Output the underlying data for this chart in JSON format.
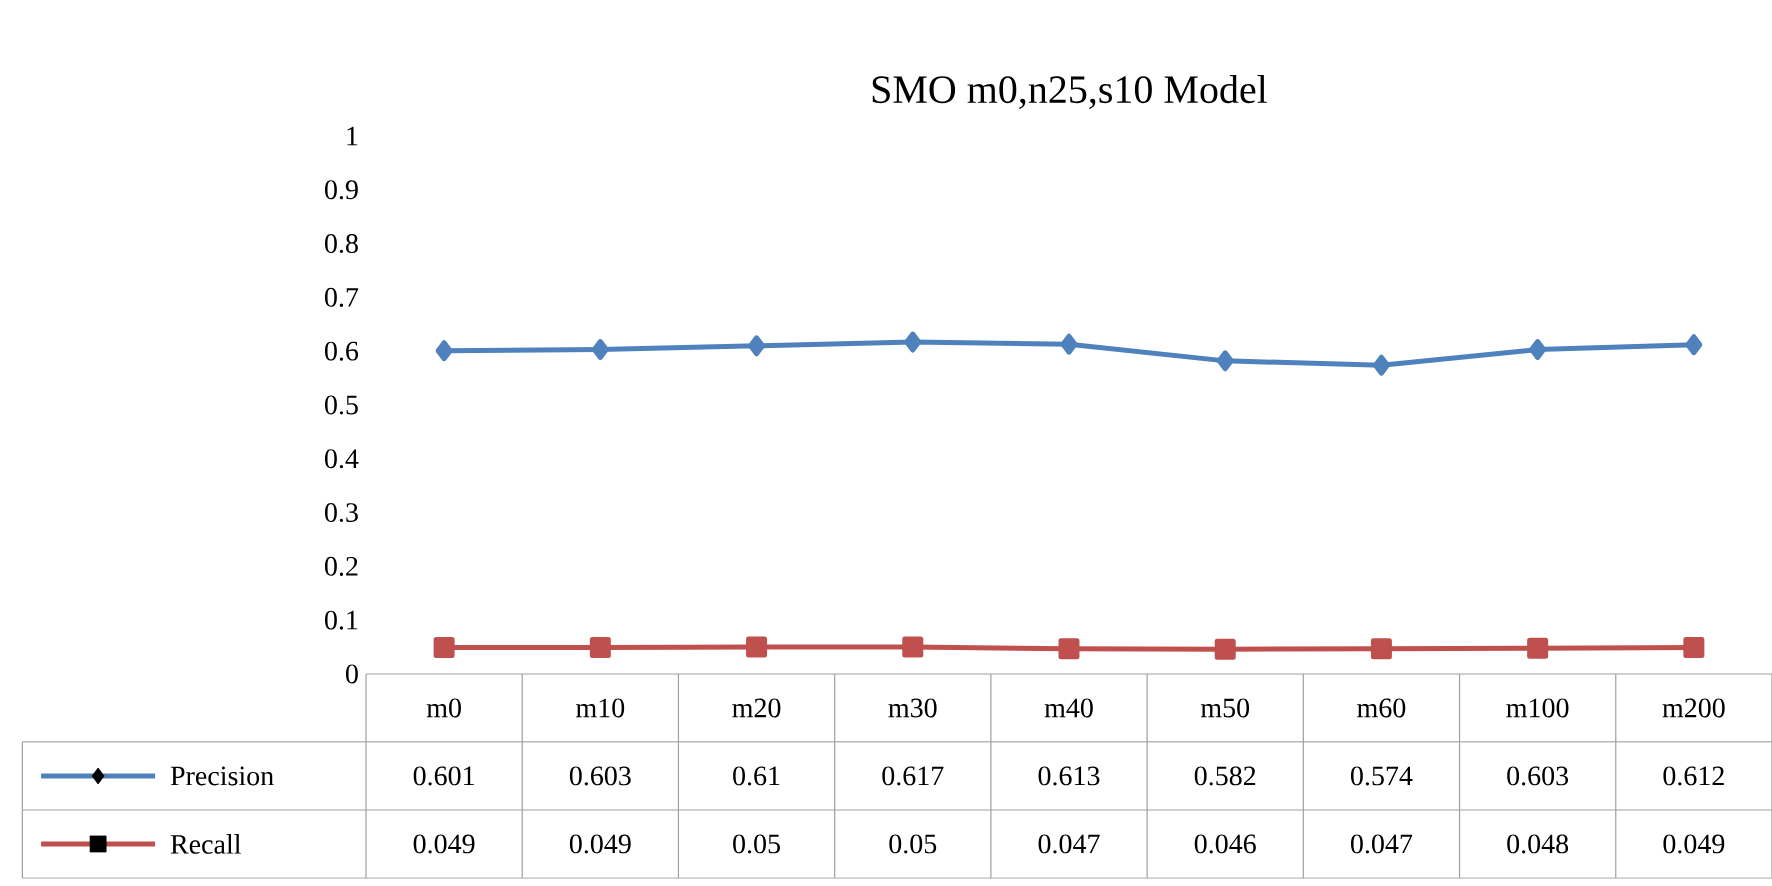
{
  "chart_data": {
    "type": "line",
    "title": "SMO m0,n25,s10 Model",
    "categories": [
      "m0",
      "m10",
      "m20",
      "m30",
      "m40",
      "m50",
      "m60",
      "m100",
      "m200"
    ],
    "series": [
      {
        "name": "Precision",
        "color": "#4f81bd",
        "marker": "diamond",
        "values": [
          0.601,
          0.603,
          0.61,
          0.617,
          0.613,
          0.582,
          0.574,
          0.603,
          0.612
        ]
      },
      {
        "name": "Recall",
        "color": "#c0504d",
        "marker": "square",
        "values": [
          0.049,
          0.049,
          0.05,
          0.05,
          0.047,
          0.046,
          0.047,
          0.048,
          0.049
        ]
      }
    ],
    "ylim": [
      0,
      1
    ],
    "yticks": [
      0,
      0.1,
      0.2,
      0.3,
      0.4,
      0.5,
      0.6,
      0.7,
      0.8,
      0.9,
      1
    ],
    "data_labels": true,
    "legend": "bottom",
    "grid": false
  }
}
